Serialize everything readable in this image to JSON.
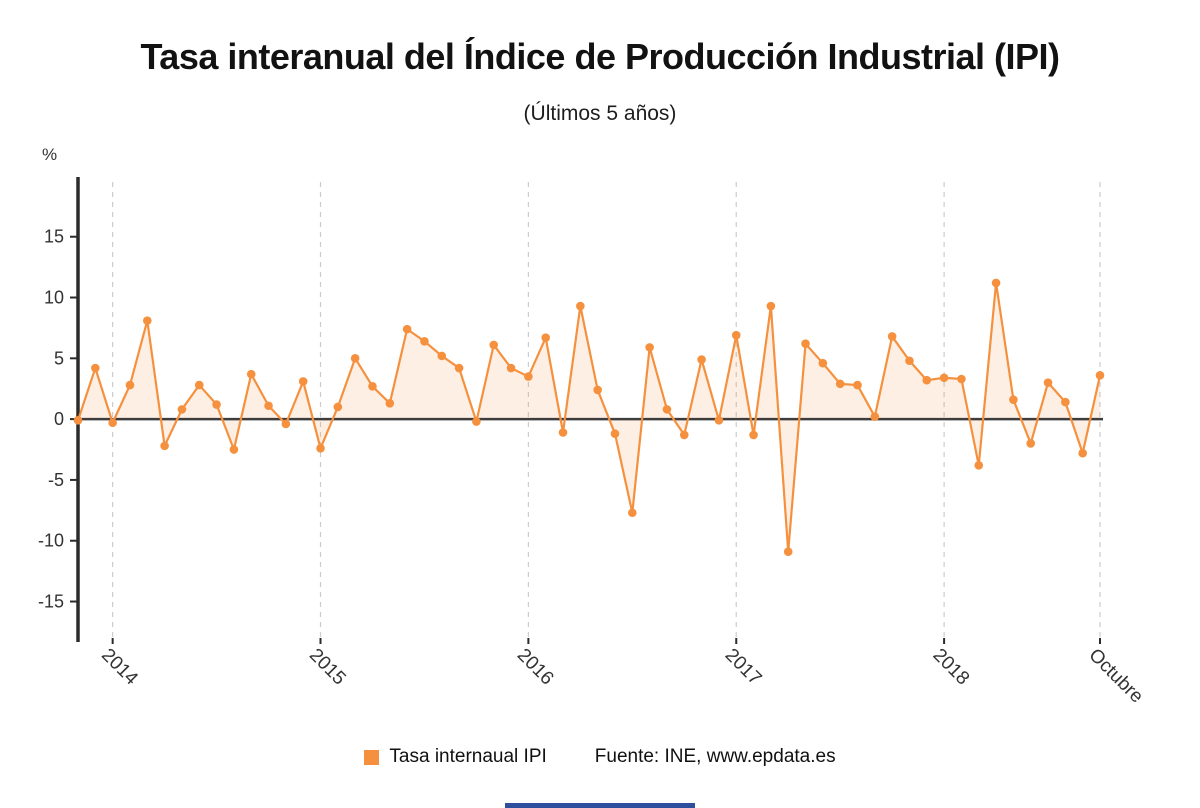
{
  "title": "Tasa interanual del Índice de Producción Industrial (IPI)",
  "subtitle": "(Últimos 5 años)",
  "y_unit_label": "%",
  "legend": {
    "series_label": "Tasa internaual IPI",
    "source_label": "Fuente: INE, www.epdata.es"
  },
  "colors": {
    "line": "#F5913E",
    "area_fill": "#F5913E",
    "area_fill_opacity": 0.14,
    "axis": "#2b2b2b",
    "zero_line": "#3d3d3d",
    "grid": "#cccccc",
    "tick_text": "#333333",
    "bottom_bar": "#2d4f9e"
  },
  "chart_data": {
    "type": "line",
    "title": "Tasa interanual del Índice de Producción Industrial (IPI)",
    "subtitle": "(Últimos 5 años)",
    "ylabel": "%",
    "xlabel": "",
    "grid": "vertical-dashed-at-x-ticks",
    "legend_position": "bottom-center",
    "marker": "circle",
    "area_fill_to_zero": true,
    "ylim": [
      -18,
      19.5
    ],
    "y_ticks": [
      15,
      10,
      5,
      0,
      -5,
      -10,
      -15
    ],
    "x_ticks": [
      {
        "index": 2,
        "label": "2014"
      },
      {
        "index": 14,
        "label": "2015"
      },
      {
        "index": 26,
        "label": "2016"
      },
      {
        "index": 38,
        "label": "2017"
      },
      {
        "index": 50,
        "label": "2018"
      },
      {
        "index": 59,
        "label": "Octubre"
      }
    ],
    "series": [
      {
        "name": "Tasa internaual IPI",
        "values": [
          -0.1,
          4.2,
          -0.3,
          2.8,
          8.1,
          -2.2,
          0.8,
          2.8,
          1.2,
          -2.5,
          3.7,
          1.1,
          -0.4,
          3.1,
          -2.4,
          1.0,
          5.0,
          2.7,
          1.3,
          7.4,
          6.4,
          5.2,
          4.2,
          -0.2,
          6.1,
          4.2,
          3.5,
          6.7,
          -1.1,
          9.3,
          2.4,
          -1.2,
          -7.7,
          5.9,
          0.8,
          -1.3,
          4.9,
          -0.1,
          6.9,
          -1.3,
          9.3,
          -10.9,
          6.2,
          4.6,
          2.9,
          2.8,
          0.2,
          6.8,
          4.8,
          3.2,
          3.4,
          3.3,
          -3.8,
          11.2,
          1.6,
          -2.0,
          3.0,
          1.4,
          -2.8,
          3.6
        ]
      }
    ]
  }
}
